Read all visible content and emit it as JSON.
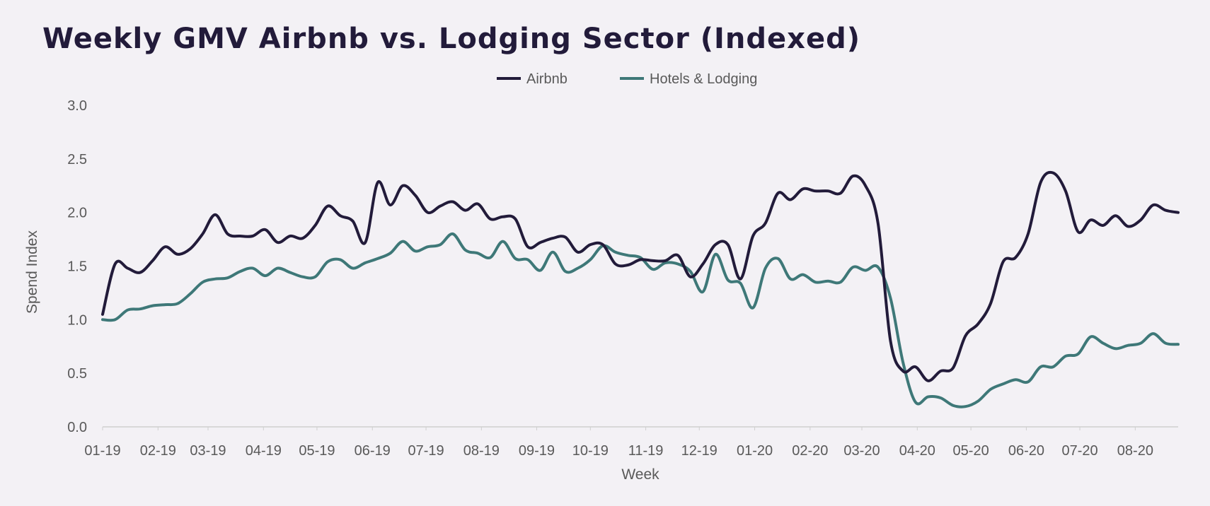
{
  "colors": {
    "airbnb": "#221b3a",
    "hotels": "#3e7878",
    "background": "#f3f1f5",
    "axis": "#cfcfcf",
    "text": "#595959"
  },
  "chart_data": {
    "type": "line",
    "title": "Weekly GMV Airbnb vs. Lodging Sector (Indexed)",
    "xlabel": "Week",
    "ylabel": "Spend Index",
    "ylim": [
      0,
      3
    ],
    "yticks": [
      "0.0",
      "0.5",
      "1.0",
      "1.5",
      "2.0",
      "2.5",
      "3.0"
    ],
    "grid": false,
    "legend_position": "top-center",
    "weeks_total": 87,
    "x_ticks": [
      {
        "label": "01-19",
        "week": 0
      },
      {
        "label": "02-19",
        "week": 4.43
      },
      {
        "label": "03-19",
        "week": 8.43
      },
      {
        "label": "04-19",
        "week": 12.86
      },
      {
        "label": "05-19",
        "week": 17.14
      },
      {
        "label": "06-19",
        "week": 21.57
      },
      {
        "label": "07-19",
        "week": 25.86
      },
      {
        "label": "08-19",
        "week": 30.29
      },
      {
        "label": "09-19",
        "week": 34.71
      },
      {
        "label": "10-19",
        "week": 39
      },
      {
        "label": "11-19",
        "week": 43.43
      },
      {
        "label": "12-19",
        "week": 47.71
      },
      {
        "label": "01-20",
        "week": 52.14
      },
      {
        "label": "02-20",
        "week": 56.57
      },
      {
        "label": "03-20",
        "week": 60.71
      },
      {
        "label": "04-20",
        "week": 65.14
      },
      {
        "label": "05-20",
        "week": 69.43
      },
      {
        "label": "06-20",
        "week": 73.86
      },
      {
        "label": "07-20",
        "week": 78.14
      },
      {
        "label": "08-20",
        "week": 82.57
      }
    ],
    "series": [
      {
        "name": "Airbnb",
        "color": "#221b3a",
        "values": [
          1.05,
          1.52,
          1.48,
          1.44,
          1.55,
          1.68,
          1.61,
          1.66,
          1.8,
          1.98,
          1.8,
          1.78,
          1.78,
          1.84,
          1.72,
          1.78,
          1.76,
          1.88,
          2.06,
          1.97,
          1.92,
          1.72,
          2.28,
          2.07,
          2.25,
          2.16,
          2.0,
          2.06,
          2.1,
          2.02,
          2.08,
          1.94,
          1.96,
          1.94,
          1.68,
          1.72,
          1.76,
          1.77,
          1.63,
          1.7,
          1.7,
          1.52,
          1.51,
          1.56,
          1.55,
          1.55,
          1.6,
          1.4,
          1.52,
          1.7,
          1.7,
          1.38,
          1.78,
          1.9,
          2.18,
          2.12,
          2.22,
          2.2,
          2.2,
          2.18,
          2.34,
          2.25,
          1.9,
          0.8,
          0.52,
          0.56,
          0.43,
          0.52,
          0.55,
          0.85,
          0.96,
          1.15,
          1.54,
          1.58,
          1.8,
          2.28,
          2.37,
          2.2,
          1.82,
          1.93,
          1.88,
          1.97,
          1.87,
          1.93,
          2.07,
          2.02,
          2.0
        ]
      },
      {
        "name": "Hotels & Lodging",
        "color": "#3e7878",
        "values": [
          1.0,
          1.0,
          1.09,
          1.1,
          1.13,
          1.14,
          1.15,
          1.24,
          1.35,
          1.38,
          1.39,
          1.45,
          1.48,
          1.41,
          1.48,
          1.44,
          1.4,
          1.4,
          1.54,
          1.56,
          1.48,
          1.53,
          1.57,
          1.62,
          1.73,
          1.64,
          1.68,
          1.7,
          1.8,
          1.65,
          1.62,
          1.58,
          1.73,
          1.57,
          1.56,
          1.46,
          1.63,
          1.45,
          1.48,
          1.56,
          1.69,
          1.63,
          1.6,
          1.58,
          1.47,
          1.53,
          1.52,
          1.45,
          1.26,
          1.61,
          1.37,
          1.34,
          1.11,
          1.48,
          1.57,
          1.38,
          1.42,
          1.35,
          1.36,
          1.35,
          1.49,
          1.46,
          1.49,
          1.2,
          0.6,
          0.23,
          0.28,
          0.27,
          0.2,
          0.19,
          0.24,
          0.35,
          0.4,
          0.44,
          0.42,
          0.56,
          0.56,
          0.66,
          0.68,
          0.84,
          0.78,
          0.73,
          0.76,
          0.78,
          0.87,
          0.78,
          0.77
        ]
      }
    ]
  }
}
